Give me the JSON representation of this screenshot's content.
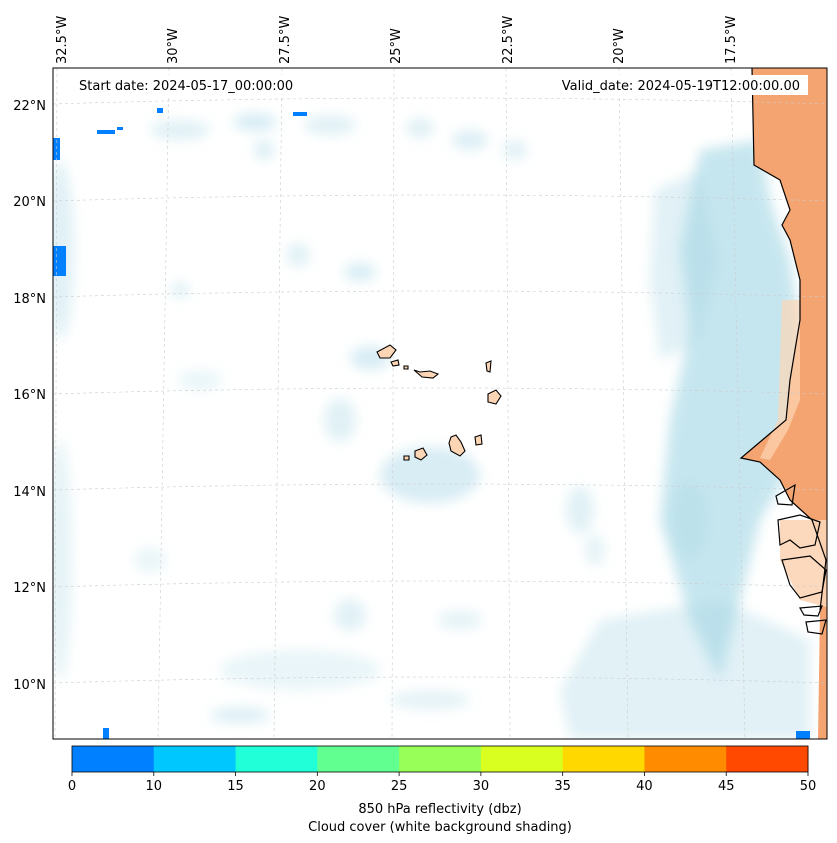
{
  "header": {
    "start_label": "Start date: 2024-05-17_00:00:00",
    "valid_label": "Valid_date: 2024-05-19T12:00:00.00"
  },
  "axes": {
    "lon_labels": [
      "32.5°W",
      "30°W",
      "27.5°W",
      "25°W",
      "22.5°W",
      "20°W",
      "17.5°W"
    ],
    "lat_labels": [
      "22°N",
      "20°N",
      "18°N",
      "16°N",
      "14°N",
      "12°N",
      "10°N"
    ]
  },
  "colorbar": {
    "ticks": [
      "0",
      "10",
      "15",
      "20",
      "25",
      "30",
      "35",
      "40",
      "45",
      "50"
    ],
    "colors": [
      "#0080ff",
      "#00c8ff",
      "#20ffd8",
      "#60ff90",
      "#98ff58",
      "#d8ff20",
      "#ffd800",
      "#ff8c00",
      "#ff4800"
    ],
    "label_line1": "850 hPa reflectivity (dbz)",
    "label_line2": "Cloud cover (white background shading)"
  },
  "colors": {
    "cloud": "#a8d8e6",
    "land": "#f4a470",
    "land_light": "#fcd5b5",
    "coast": "#000000",
    "grid": "#cccccc"
  }
}
